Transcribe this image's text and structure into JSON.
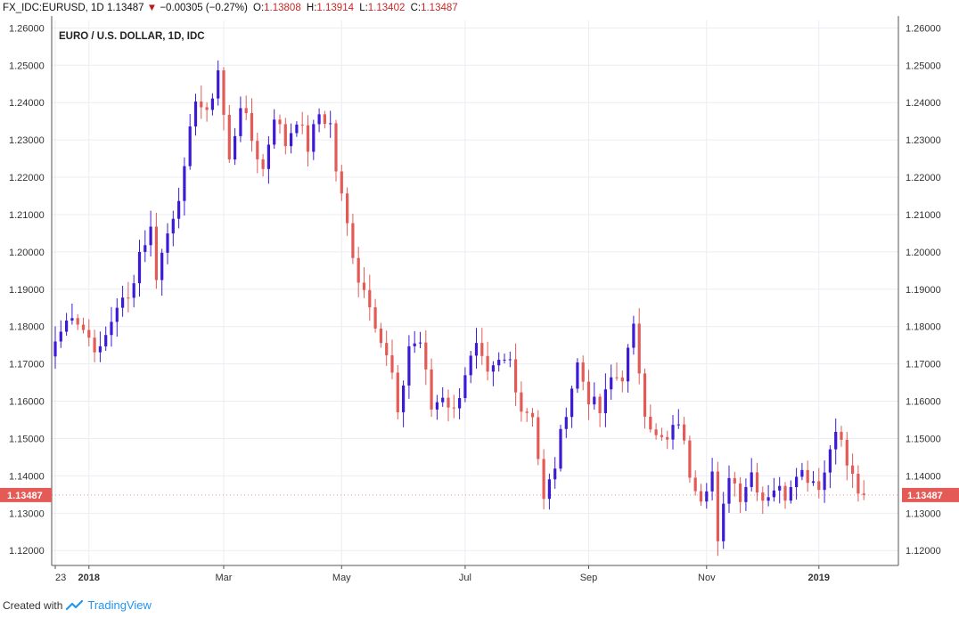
{
  "header": {
    "symbol": "FX_IDC:EURUSD, 1D",
    "last": "1.13487",
    "arrow": "▼",
    "change": "−0.00305 (−0.27%)",
    "open_label": "O:",
    "open": "1.13808",
    "high_label": "H:",
    "high": "1.13914",
    "low_label": "L:",
    "low": "1.13402",
    "close_label": "C:",
    "close": "1.13487"
  },
  "footer": {
    "created_with": "Created with",
    "brand": "TradingView",
    "brand_icon": "tradingview-logo-icon"
  },
  "colors": {
    "up": "#3d1bd6",
    "down": "#e45a56",
    "grid": "#e9edf2",
    "price_tag": "#e45a56"
  },
  "chart_data": {
    "type": "candlestick",
    "title": "EURO / U.S. DOLLAR, 1D, IDC",
    "ylim": [
      1.116,
      1.262
    ],
    "y_ticks": [
      "1.26000",
      "1.25000",
      "1.24000",
      "1.23000",
      "1.22000",
      "1.21000",
      "1.20000",
      "1.19000",
      "1.18000",
      "1.17000",
      "1.16000",
      "1.15000",
      "1.14000",
      "1.13000",
      "1.12000"
    ],
    "x_ticks": [
      {
        "label": "23",
        "index": 0
      },
      {
        "label": "2018",
        "index": 6
      },
      {
        "label": "Mar",
        "index": 30
      },
      {
        "label": "May",
        "index": 51
      },
      {
        "label": "Jul",
        "index": 73
      },
      {
        "label": "Sep",
        "index": 95
      },
      {
        "label": "Nov",
        "index": 116
      },
      {
        "label": "2019",
        "index": 136
      }
    ],
    "current_price": "1.13487",
    "close_anchors": [
      [
        0,
        1.176
      ],
      [
        3,
        1.184
      ],
      [
        6,
        1.177
      ],
      [
        8,
        1.173
      ],
      [
        11,
        1.186
      ],
      [
        13,
        1.187
      ],
      [
        15,
        1.2
      ],
      [
        17,
        1.206
      ],
      [
        18,
        1.194
      ],
      [
        20,
        1.205
      ],
      [
        23,
        1.221
      ],
      [
        25,
        1.242
      ],
      [
        27,
        1.236
      ],
      [
        29,
        1.249
      ],
      [
        31,
        1.224
      ],
      [
        33,
        1.24
      ],
      [
        35,
        1.23
      ],
      [
        37,
        1.222
      ],
      [
        39,
        1.237
      ],
      [
        41,
        1.229
      ],
      [
        43,
        1.236
      ],
      [
        45,
        1.228
      ],
      [
        47,
        1.237
      ],
      [
        49,
        1.234
      ],
      [
        50,
        1.222
      ],
      [
        52,
        1.207
      ],
      [
        54,
        1.193
      ],
      [
        56,
        1.187
      ],
      [
        58,
        1.176
      ],
      [
        60,
        1.167
      ],
      [
        61,
        1.155
      ],
      [
        63,
        1.175
      ],
      [
        65,
        1.176
      ],
      [
        67,
        1.158
      ],
      [
        69,
        1.162
      ],
      [
        71,
        1.157
      ],
      [
        73,
        1.168
      ],
      [
        75,
        1.174
      ],
      [
        77,
        1.166
      ],
      [
        79,
        1.17
      ],
      [
        81,
        1.171
      ],
      [
        83,
        1.158
      ],
      [
        85,
        1.157
      ],
      [
        87,
        1.133
      ],
      [
        89,
        1.143
      ],
      [
        91,
        1.158
      ],
      [
        93,
        1.17
      ],
      [
        95,
        1.161
      ],
      [
        97,
        1.157
      ],
      [
        99,
        1.166
      ],
      [
        101,
        1.167
      ],
      [
        103,
        1.179
      ],
      [
        105,
        1.158
      ],
      [
        107,
        1.15
      ],
      [
        109,
        1.149
      ],
      [
        111,
        1.155
      ],
      [
        113,
        1.141
      ],
      [
        115,
        1.135
      ],
      [
        117,
        1.141
      ],
      [
        118,
        1.121
      ],
      [
        120,
        1.141
      ],
      [
        122,
        1.135
      ],
      [
        124,
        1.141
      ],
      [
        126,
        1.134
      ],
      [
        128,
        1.137
      ],
      [
        130,
        1.135
      ],
      [
        132,
        1.142
      ],
      [
        134,
        1.14
      ],
      [
        136,
        1.138
      ],
      [
        137,
        1.141
      ],
      [
        139,
        1.154
      ],
      [
        141,
        1.143
      ],
      [
        143,
        1.136
      ],
      [
        144,
        1.1349
      ]
    ]
  }
}
